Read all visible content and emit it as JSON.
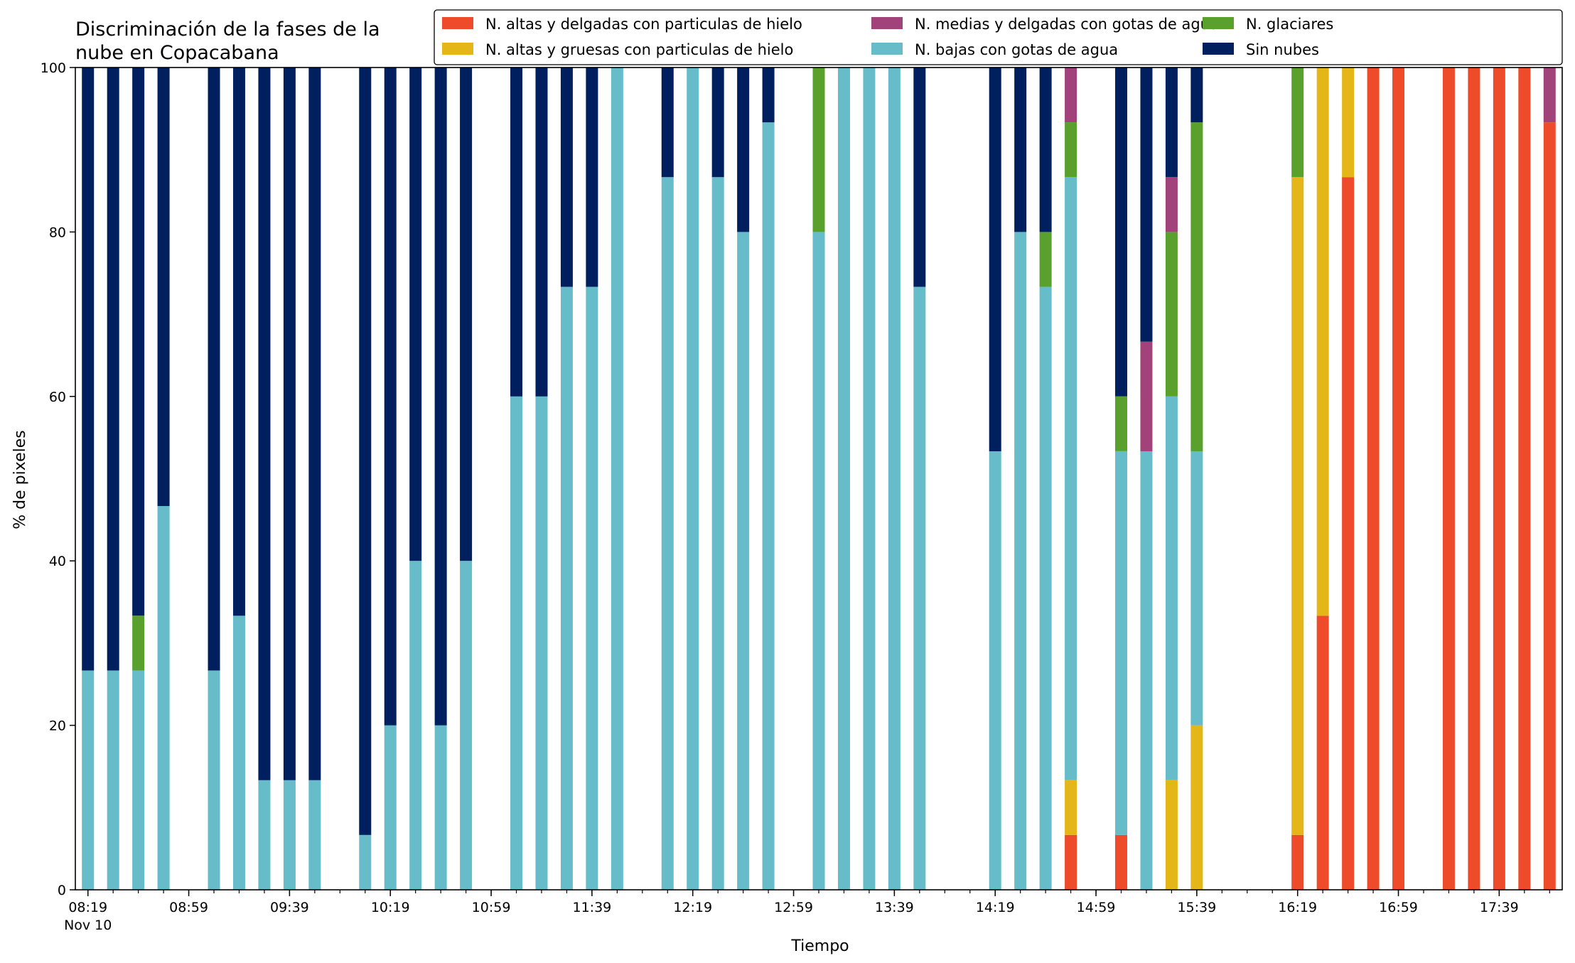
{
  "chart_data": {
    "type": "bar",
    "stacked": true,
    "title_lines": [
      "Discriminación de la fases de la",
      "nube en Copacabana"
    ],
    "xlabel": "Tiempo",
    "ylabel": "% de pixeles",
    "ylim": [
      0,
      100
    ],
    "yticks": [
      "0",
      "20",
      "40",
      "60",
      "80",
      "100"
    ],
    "xlim_minutes_after_0819": [
      -5,
      585
    ],
    "xtick_labels": [
      {
        "minute": 0,
        "label": "08:19",
        "sublabel": "Nov 10"
      },
      {
        "minute": 40,
        "label": "08:59"
      },
      {
        "minute": 80,
        "label": "09:39"
      },
      {
        "minute": 120,
        "label": "10:19"
      },
      {
        "minute": 160,
        "label": "10:59"
      },
      {
        "minute": 200,
        "label": "11:39"
      },
      {
        "minute": 240,
        "label": "12:19"
      },
      {
        "minute": 280,
        "label": "12:59"
      },
      {
        "minute": 320,
        "label": "13:39"
      },
      {
        "minute": 360,
        "label": "14:19"
      },
      {
        "minute": 400,
        "label": "14:59"
      },
      {
        "minute": 440,
        "label": "15:39"
      },
      {
        "minute": 480,
        "label": "16:19"
      },
      {
        "minute": 520,
        "label": "16:59"
      },
      {
        "minute": 560,
        "label": "17:39"
      }
    ],
    "minor_tick_step_minutes": 10,
    "legend_position": "top-right",
    "legend_columns": 3,
    "series": [
      {
        "key": "altas_delgadas",
        "name": "N. altas y delgadas con particulas de hielo",
        "color": "#ee4b2b"
      },
      {
        "key": "altas_gruesas",
        "name": "N. altas y gruesas con particulas de hielo",
        "color": "#e5b617"
      },
      {
        "key": "bajas",
        "name": "N. bajas con gotas de agua",
        "color": "#66bdc9"
      },
      {
        "key": "glaciares",
        "name": "N. glaciares",
        "color": "#5aa02c"
      },
      {
        "key": "medias",
        "name": "N. medias y delgadas con gotas de agua",
        "color": "#a2427a"
      },
      {
        "key": "sin_nubes",
        "name": "Sin nubes",
        "color": "#001f5f"
      }
    ],
    "legend_order": [
      "altas_delgadas",
      "altas_gruesas",
      "medias",
      "bajas",
      "glaciares",
      "sin_nubes"
    ],
    "bar_minutes": [
      0,
      10,
      20,
      30,
      50,
      60,
      70,
      80,
      90,
      110,
      120,
      130,
      140,
      150,
      170,
      180,
      190,
      200,
      210,
      230,
      240,
      250,
      260,
      270,
      290,
      300,
      310,
      320,
      330,
      360,
      370,
      380,
      390,
      410,
      420,
      430,
      440,
      480,
      490,
      500,
      510,
      520,
      540,
      550,
      560,
      570,
      580
    ],
    "stack_order": [
      "altas_delgadas",
      "altas_gruesas",
      "bajas",
      "glaciares",
      "medias",
      "sin_nubes"
    ],
    "values": {
      "altas_delgadas": [
        0,
        0,
        0,
        0,
        0,
        0,
        0,
        0,
        0,
        0,
        0,
        0,
        0,
        0,
        0,
        0,
        0,
        0,
        0,
        0,
        0,
        0,
        0,
        0,
        0,
        0,
        0,
        0,
        0,
        0,
        0,
        0,
        6.67,
        6.67,
        0,
        0,
        0,
        6.67,
        33.33,
        86.67,
        100,
        100,
        100,
        100,
        100,
        100,
        93.33
      ],
      "altas_gruesas": [
        0,
        0,
        0,
        0,
        0,
        0,
        0,
        0,
        0,
        0,
        0,
        0,
        0,
        0,
        0,
        0,
        0,
        0,
        0,
        0,
        0,
        0,
        0,
        0,
        0,
        0,
        0,
        0,
        0,
        0,
        0,
        0,
        6.67,
        0,
        0,
        13.33,
        20,
        80,
        66.67,
        13.33,
        0,
        0,
        0,
        0,
        0,
        0,
        0
      ],
      "bajas": [
        26.67,
        26.67,
        26.67,
        46.67,
        26.67,
        33.33,
        13.33,
        13.33,
        13.33,
        6.67,
        20,
        40,
        20,
        40,
        60,
        60,
        73.33,
        73.33,
        100,
        86.67,
        100,
        86.67,
        80,
        93.33,
        80,
        100,
        100,
        100,
        73.33,
        53.33,
        80,
        73.33,
        73.33,
        46.67,
        53.33,
        46.67,
        33.33,
        0,
        0,
        0,
        0,
        0,
        0,
        0,
        0,
        0,
        0
      ],
      "glaciares": [
        0,
        0,
        6.67,
        0,
        0,
        0,
        0,
        0,
        0,
        0,
        0,
        0,
        0,
        0,
        0,
        0,
        0,
        0,
        0,
        0,
        0,
        0,
        0,
        0,
        20,
        0,
        0,
        0,
        0,
        0,
        0,
        6.67,
        6.67,
        6.67,
        0,
        20,
        40,
        13.33,
        0,
        0,
        0,
        0,
        0,
        0,
        0,
        0,
        0
      ],
      "medias": [
        0,
        0,
        0,
        0,
        0,
        0,
        0,
        0,
        0,
        0,
        0,
        0,
        0,
        0,
        0,
        0,
        0,
        0,
        0,
        0,
        0,
        0,
        0,
        0,
        0,
        0,
        0,
        0,
        0,
        0,
        0,
        0,
        6.67,
        0,
        13.33,
        6.67,
        0,
        0,
        0,
        0,
        0,
        0,
        0,
        0,
        0,
        0,
        6.67
      ],
      "sin_nubes": [
        73.33,
        73.33,
        66.67,
        53.33,
        73.33,
        66.67,
        86.67,
        86.67,
        86.67,
        93.33,
        80,
        60,
        80,
        60,
        40,
        40,
        26.67,
        26.67,
        0,
        13.33,
        0,
        13.33,
        20,
        6.67,
        0,
        0,
        0,
        0,
        26.67,
        46.67,
        20,
        20,
        0,
        40,
        33.33,
        13.33,
        6.67,
        0,
        0,
        0,
        0,
        0,
        0,
        0,
        0,
        0,
        0
      ]
    }
  }
}
